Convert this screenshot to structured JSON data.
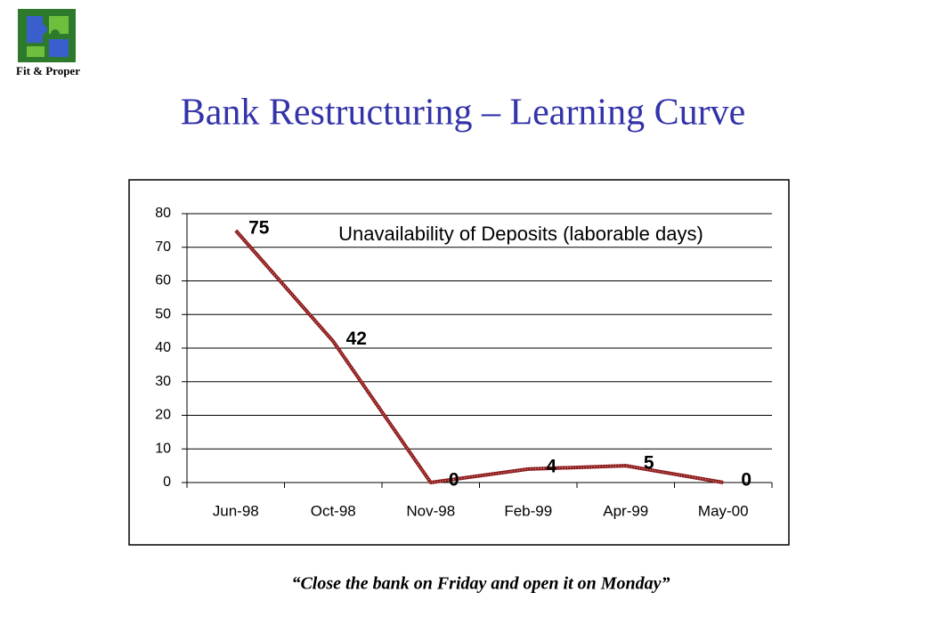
{
  "logo": {
    "label": "Fit & Proper"
  },
  "header": {
    "title": "Bank Restructuring – Learning Curve"
  },
  "chart_data": {
    "type": "line",
    "title": "Unavailability of Deposits (laborable days)",
    "categories": [
      "Jun-98",
      "Oct-98",
      "Nov-98",
      "Feb-99",
      "Apr-99",
      "May-00"
    ],
    "values": [
      75,
      42,
      0,
      4,
      5,
      0
    ],
    "color": "#8b1a1a",
    "ylim": [
      0,
      80
    ],
    "yticks": [
      0,
      10,
      20,
      30,
      40,
      50,
      60,
      70,
      80
    ],
    "grid": true
  },
  "caption": "“Close the bank on Friday and open it on Monday”"
}
